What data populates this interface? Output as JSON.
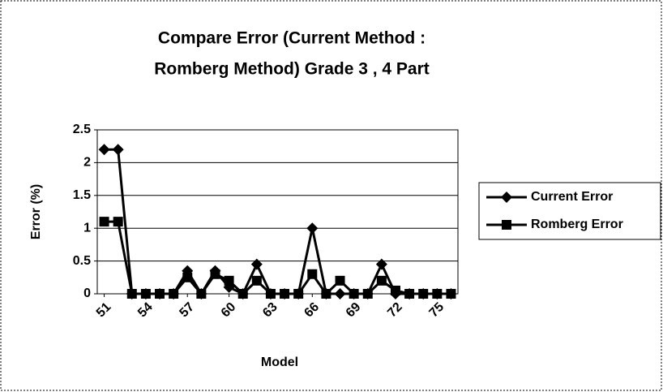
{
  "chart_data": {
    "type": "line",
    "title": [
      "Compare Error (Current Method :",
      "Romberg Method) Grade 3 , 4 Part"
    ],
    "x_label": "Model",
    "y_label": "Error (%)",
    "x": [
      51,
      52,
      53,
      54,
      55,
      56,
      57,
      58,
      59,
      60,
      61,
      62,
      63,
      64,
      65,
      66,
      67,
      68,
      69,
      70,
      71,
      72,
      73,
      74,
      75,
      76
    ],
    "xlim": [
      50.5,
      76.5
    ],
    "xticks": [
      51,
      54,
      57,
      60,
      63,
      66,
      69,
      72,
      75
    ],
    "ylim": [
      0,
      2.5
    ],
    "yticks": [
      0,
      0.5,
      1,
      1.5,
      2,
      2.5
    ],
    "grid": true,
    "legend": "right",
    "series": [
      {
        "name": "Current Error",
        "color": "#000000",
        "marker": "diamond",
        "values": [
          2.2,
          2.2,
          0,
          0,
          0,
          0,
          0.35,
          0,
          0.35,
          0.1,
          0,
          0.45,
          0,
          0,
          0,
          1.0,
          0,
          0,
          0,
          0,
          0.45,
          0,
          0,
          0,
          0,
          0
        ]
      },
      {
        "name": "Romberg Error",
        "color": "#000000",
        "marker": "square",
        "values": [
          1.1,
          1.1,
          0,
          0,
          0,
          0,
          0.25,
          0,
          0.3,
          0.2,
          0,
          0.2,
          0,
          0,
          0,
          0.3,
          0,
          0.2,
          0,
          0,
          0.2,
          0.05,
          0,
          0,
          0,
          0
        ]
      }
    ]
  }
}
